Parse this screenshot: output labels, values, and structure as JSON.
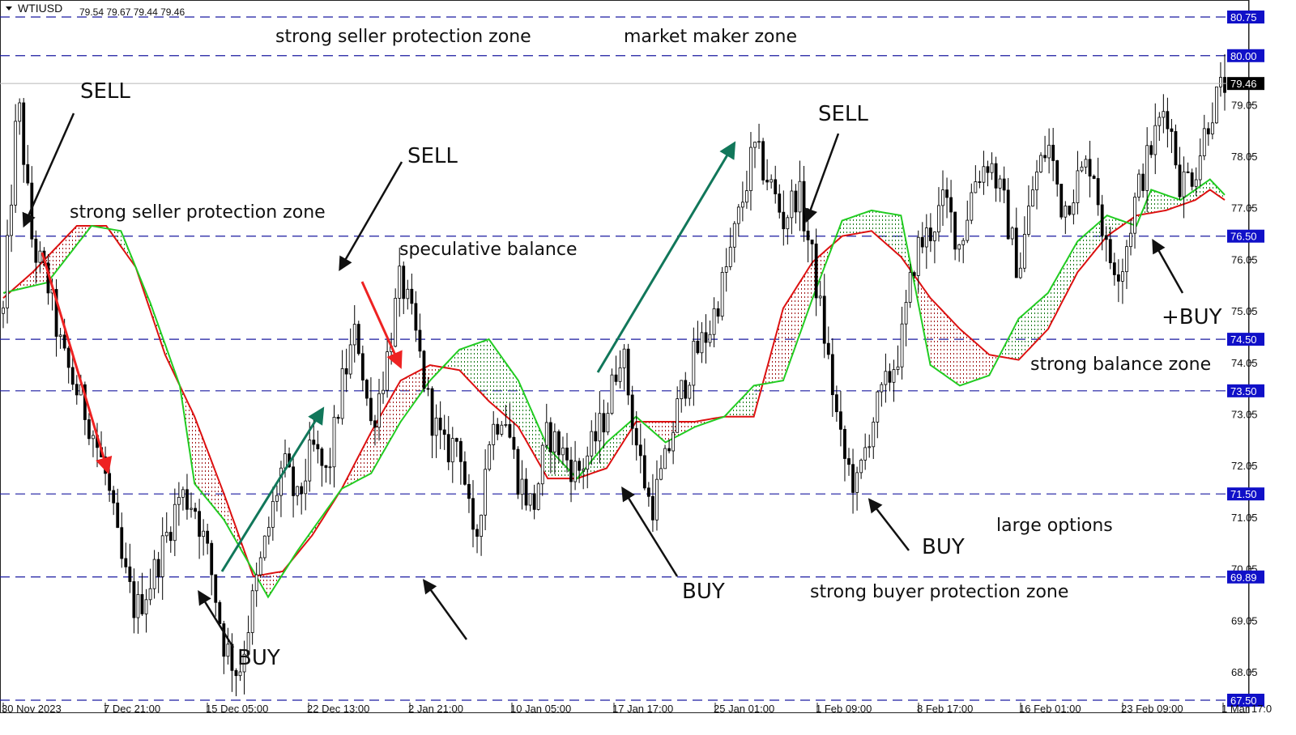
{
  "header": {
    "symbol": "WTIUSD",
    "ohlc": "79.54 79.67 79.44 79.46"
  },
  "chart_data": {
    "type": "candlestick",
    "symbol": "WTIUSD",
    "ylim": [
      67.5,
      80.85
    ],
    "x_tick_labels": [
      "30 Nov 2023",
      "7 Dec 21:00",
      "15 Dec 05:00",
      "22 Dec 13:00",
      "2 Jan 21:00",
      "10 Jan 05:00",
      "17 Jan 17:00",
      "25 Jan 01:00",
      "1 Feb 09:00",
      "8 Feb 17:00",
      "16 Feb 01:00",
      "23 Feb 09:00",
      "1 Mar 17:0"
    ],
    "y_tick_labels": [
      "79.05",
      "78.05",
      "77.05",
      "76.05",
      "75.05",
      "74.05",
      "73.05",
      "72.05",
      "71.05",
      "70.05",
      "69.05",
      "68.05"
    ],
    "y_tick_values": [
      79.05,
      78.05,
      77.05,
      76.05,
      75.05,
      74.05,
      73.05,
      72.05,
      71.05,
      70.05,
      69.05,
      68.05
    ],
    "levels": [
      {
        "value": 80.75,
        "label": "80.75"
      },
      {
        "value": 80.0,
        "label": "80.00"
      },
      {
        "value": 76.5,
        "label": "76.50"
      },
      {
        "value": 74.5,
        "label": "74.50"
      },
      {
        "value": 73.5,
        "label": "73.50"
      },
      {
        "value": 71.5,
        "label": "71.50"
      },
      {
        "value": 69.89,
        "label": "69.89"
      },
      {
        "value": 67.5,
        "label": "67.50"
      }
    ],
    "current_price": {
      "value": 79.46,
      "label": "79.46"
    },
    "price_path": [
      [
        0,
        75.0
      ],
      [
        1,
        79.2
      ],
      [
        2,
        76.3
      ],
      [
        3,
        75.6
      ],
      [
        4,
        74.2
      ],
      [
        5,
        73.5
      ],
      [
        6,
        72.8
      ],
      [
        7,
        71.8
      ],
      [
        8,
        70.2
      ],
      [
        9,
        69.2
      ],
      [
        10,
        69.8
      ],
      [
        11,
        70.6
      ],
      [
        12,
        71.5
      ],
      [
        13,
        71.3
      ],
      [
        14,
        70.2
      ],
      [
        15,
        68.6
      ],
      [
        16,
        68.0
      ],
      [
        17,
        69.5
      ],
      [
        18,
        70.8
      ],
      [
        19,
        72.1
      ],
      [
        20,
        71.3
      ],
      [
        21,
        72.4
      ],
      [
        22,
        71.8
      ],
      [
        23,
        73.6
      ],
      [
        24,
        74.7
      ],
      [
        25,
        72.8
      ],
      [
        26,
        74.0
      ],
      [
        27,
        75.7
      ],
      [
        28,
        74.6
      ],
      [
        29,
        73.1
      ],
      [
        30,
        72.3
      ],
      [
        31,
        72.6
      ],
      [
        32,
        70.3
      ],
      [
        33,
        72.6
      ],
      [
        34,
        73.2
      ],
      [
        35,
        71.8
      ],
      [
        36,
        71.2
      ],
      [
        37,
        72.7
      ],
      [
        38,
        72.3
      ],
      [
        39,
        71.9
      ],
      [
        40,
        72.4
      ],
      [
        41,
        73.1
      ],
      [
        42,
        74.4
      ],
      [
        43,
        72.5
      ],
      [
        44,
        71.2
      ],
      [
        45,
        72.1
      ],
      [
        46,
        73.4
      ],
      [
        47,
        74.2
      ],
      [
        48,
        74.7
      ],
      [
        49,
        75.7
      ],
      [
        50,
        76.9
      ],
      [
        51,
        78.2
      ],
      [
        52,
        77.6
      ],
      [
        53,
        76.8
      ],
      [
        54,
        77.4
      ],
      [
        55,
        76.0
      ],
      [
        56,
        74.2
      ],
      [
        57,
        72.3
      ],
      [
        58,
        71.6
      ],
      [
        59,
        72.9
      ],
      [
        60,
        73.6
      ],
      [
        61,
        74.4
      ],
      [
        62,
        76.2
      ],
      [
        63,
        76.6
      ],
      [
        64,
        77.2
      ],
      [
        65,
        76.3
      ],
      [
        66,
        77.6
      ],
      [
        67,
        78.0
      ],
      [
        68,
        77.1
      ],
      [
        69,
        75.8
      ],
      [
        70,
        77.5
      ],
      [
        71,
        78.3
      ],
      [
        72,
        77.0
      ],
      [
        73,
        77.6
      ],
      [
        74,
        78.0
      ],
      [
        75,
        76.1
      ],
      [
        76,
        75.9
      ],
      [
        77,
        77.3
      ],
      [
        78,
        78.2
      ],
      [
        79,
        79.1
      ],
      [
        80,
        77.5
      ],
      [
        81,
        77.8
      ],
      [
        82,
        78.9
      ],
      [
        83,
        79.46
      ]
    ],
    "ichimoku": {
      "span_a": [
        [
          0,
          75.4
        ],
        [
          3,
          75.6
        ],
        [
          6,
          76.7
        ],
        [
          8,
          76.6
        ],
        [
          10,
          75.2
        ],
        [
          12,
          73.6
        ],
        [
          13,
          71.7
        ],
        [
          15,
          71.0
        ],
        [
          17,
          70.0
        ],
        [
          18,
          69.5
        ],
        [
          20,
          70.4
        ],
        [
          23,
          71.6
        ],
        [
          25,
          71.9
        ],
        [
          27,
          72.9
        ],
        [
          29,
          73.7
        ],
        [
          31,
          74.3
        ],
        [
          33,
          74.5
        ],
        [
          35,
          73.7
        ],
        [
          37,
          72.4
        ],
        [
          39,
          71.8
        ],
        [
          41,
          72.5
        ],
        [
          43,
          73.0
        ],
        [
          45,
          72.5
        ],
        [
          47,
          72.8
        ],
        [
          49,
          73.0
        ],
        [
          51,
          73.6
        ],
        [
          53,
          73.7
        ],
        [
          55,
          75.3
        ],
        [
          57,
          76.8
        ],
        [
          59,
          77.0
        ],
        [
          61,
          76.9
        ],
        [
          63,
          74.0
        ],
        [
          65,
          73.6
        ],
        [
          67,
          73.8
        ],
        [
          69,
          74.9
        ],
        [
          71,
          75.4
        ],
        [
          73,
          76.4
        ],
        [
          75,
          76.9
        ],
        [
          77,
          76.7
        ],
        [
          78,
          77.4
        ],
        [
          80,
          77.2
        ],
        [
          82,
          77.6
        ],
        [
          83,
          77.3
        ]
      ],
      "span_b": [
        [
          0,
          75.3
        ],
        [
          2,
          75.8
        ],
        [
          5,
          76.7
        ],
        [
          7,
          76.7
        ],
        [
          9,
          75.9
        ],
        [
          11,
          74.2
        ],
        [
          13,
          73.0
        ],
        [
          15,
          71.5
        ],
        [
          17,
          69.9
        ],
        [
          19,
          70.0
        ],
        [
          21,
          70.7
        ],
        [
          23,
          71.6
        ],
        [
          25,
          72.7
        ],
        [
          27,
          73.7
        ],
        [
          29,
          74.0
        ],
        [
          31,
          73.9
        ],
        [
          33,
          73.3
        ],
        [
          35,
          72.8
        ],
        [
          37,
          71.8
        ],
        [
          39,
          71.8
        ],
        [
          41,
          72.0
        ],
        [
          43,
          72.9
        ],
        [
          45,
          72.9
        ],
        [
          47,
          72.9
        ],
        [
          49,
          73.0
        ],
        [
          51,
          73.0
        ],
        [
          53,
          75.1
        ],
        [
          55,
          76.0
        ],
        [
          57,
          76.5
        ],
        [
          59,
          76.6
        ],
        [
          61,
          76.1
        ],
        [
          63,
          75.3
        ],
        [
          65,
          74.7
        ],
        [
          67,
          74.2
        ],
        [
          69,
          74.1
        ],
        [
          71,
          74.7
        ],
        [
          73,
          75.8
        ],
        [
          75,
          76.5
        ],
        [
          77,
          76.9
        ],
        [
          79,
          77.0
        ],
        [
          81,
          77.2
        ],
        [
          82,
          77.4
        ],
        [
          83,
          77.2
        ]
      ]
    },
    "annotations": [
      "SELL",
      "SELL",
      "SELL",
      "BUY",
      "BUY",
      "BUY",
      "+BUY"
    ],
    "zone_labels": [
      "strong seller protection zone",
      "market maker zone",
      "strong seller protection zone",
      "speculative balance",
      "strong balance zone",
      "large options",
      "strong buyer protection zone"
    ]
  },
  "texts": {
    "top_left_zone": "strong seller protection zone",
    "top_right_zone": "market maker zone",
    "upper_zone": "strong seller protection zone",
    "mid_zone": "speculative balance",
    "balance_zone": "strong balance zone",
    "options_zone": "large options",
    "buyer_zone": "strong buyer protection zone",
    "sell_1": "SELL",
    "sell_2": "SELL",
    "sell_3": "SELL",
    "buy_1": "BUY",
    "buy_2": "BUY",
    "buy_3": "BUY",
    "buy_4": "+BUY"
  },
  "colors": {
    "level_line": "#1a1aa0",
    "label_bg": "#1010c8",
    "cloud_green": "#22cc22",
    "cloud_red": "#dd1111",
    "arrow_red": "#ee2222",
    "arrow_green": "#11775a"
  }
}
